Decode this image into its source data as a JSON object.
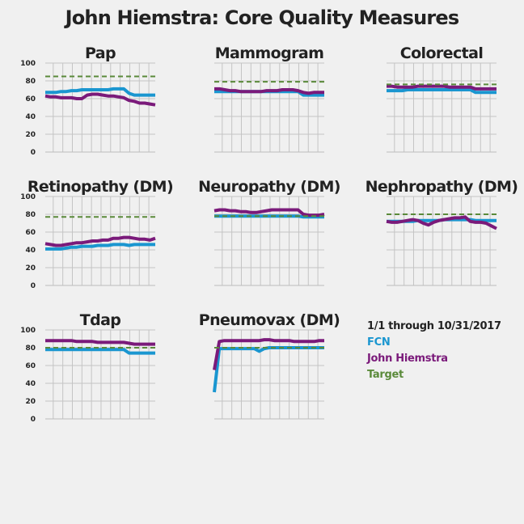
{
  "title": "John Hiemstra: Core Quality Measures",
  "legend": {
    "period": "1/1 through 10/31/2017",
    "entries": [
      {
        "name": "FCN",
        "color": "#1a96d0"
      },
      {
        "name": "John Hiemstra",
        "color": "#7a1a7a"
      },
      {
        "name": "Target",
        "color": "#5a8a3a"
      }
    ]
  },
  "chart_data": [
    {
      "type": "line",
      "title": "Pap",
      "ylim": [
        0,
        100
      ],
      "yticks": [
        "100",
        "80",
        "60",
        "40",
        "20",
        "0"
      ],
      "series": [
        {
          "name": "FCN",
          "values": [
            67,
            67,
            67,
            68,
            68,
            69,
            69,
            70,
            70,
            70,
            70,
            70,
            70,
            71,
            71,
            71,
            66,
            64,
            64,
            64,
            64,
            64
          ]
        },
        {
          "name": "John Hiemstra",
          "values": [
            63,
            62,
            62,
            61,
            61,
            61,
            60,
            60,
            64,
            65,
            65,
            64,
            63,
            63,
            62,
            61,
            58,
            57,
            55,
            55,
            54,
            53
          ]
        },
        {
          "name": "Target",
          "values": [
            85,
            85
          ]
        }
      ]
    },
    {
      "type": "line",
      "title": "Mammogram",
      "ylim": [
        0,
        100
      ],
      "yticks": [],
      "series": [
        {
          "name": "FCN",
          "values": [
            68,
            68,
            68,
            68,
            68,
            68,
            68,
            68,
            68,
            68,
            68,
            68,
            68,
            68,
            68,
            68,
            68,
            64,
            64,
            64,
            64,
            64
          ]
        },
        {
          "name": "John Hiemstra",
          "values": [
            71,
            71,
            70,
            69,
            69,
            68,
            68,
            68,
            68,
            68,
            69,
            69,
            69,
            70,
            70,
            70,
            69,
            67,
            66,
            67,
            67,
            67
          ]
        },
        {
          "name": "Target",
          "values": [
            79,
            79
          ]
        }
      ]
    },
    {
      "type": "line",
      "title": "Colorectal",
      "ylim": [
        0,
        100
      ],
      "yticks": [],
      "series": [
        {
          "name": "FCN",
          "values": [
            69,
            69,
            69,
            69,
            70,
            70,
            70,
            70,
            70,
            70,
            70,
            70,
            70,
            70,
            70,
            70,
            70,
            67,
            67,
            67,
            67,
            67
          ]
        },
        {
          "name": "John Hiemstra",
          "values": [
            74,
            74,
            73,
            73,
            73,
            73,
            74,
            74,
            74,
            74,
            74,
            74,
            73,
            73,
            73,
            73,
            73,
            71,
            71,
            71,
            71,
            71
          ]
        },
        {
          "name": "Target",
          "values": [
            76,
            76
          ]
        }
      ]
    },
    {
      "type": "line",
      "title": "Retinopathy (DM)",
      "ylim": [
        0,
        100
      ],
      "yticks": [
        "100",
        "80",
        "60",
        "40",
        "20",
        "0"
      ],
      "series": [
        {
          "name": "FCN",
          "values": [
            41,
            41,
            41,
            41,
            42,
            43,
            43,
            44,
            44,
            44,
            45,
            45,
            45,
            46,
            46,
            46,
            45,
            46,
            46,
            46,
            46,
            46
          ]
        },
        {
          "name": "John Hiemstra",
          "values": [
            47,
            46,
            45,
            45,
            46,
            47,
            48,
            48,
            49,
            50,
            50,
            51,
            51,
            53,
            53,
            54,
            54,
            53,
            52,
            52,
            51,
            53
          ]
        },
        {
          "name": "Target",
          "values": [
            77,
            77
          ]
        }
      ]
    },
    {
      "type": "line",
      "title": "Neuropathy (DM)",
      "ylim": [
        0,
        100
      ],
      "yticks": [],
      "series": [
        {
          "name": "FCN",
          "values": [
            78,
            78,
            78,
            78,
            78,
            78,
            78,
            78,
            78,
            78,
            78,
            78,
            78,
            78,
            78,
            78,
            78,
            77,
            77,
            77,
            77,
            77
          ]
        },
        {
          "name": "John Hiemstra",
          "values": [
            84,
            85,
            85,
            84,
            84,
            83,
            83,
            82,
            82,
            83,
            84,
            85,
            85,
            85,
            85,
            85,
            85,
            80,
            79,
            79,
            79,
            80
          ]
        },
        {
          "name": "Target",
          "values": [
            78,
            78
          ]
        }
      ]
    },
    {
      "type": "line",
      "title": "Nephropathy (DM)",
      "ylim": [
        0,
        100
      ],
      "yticks": [],
      "series": [
        {
          "name": "FCN",
          "values": [
            72,
            72,
            72,
            72,
            72,
            72,
            73,
            73,
            73,
            73,
            73,
            74,
            74,
            74,
            74,
            74,
            74,
            73,
            73,
            73,
            73,
            73
          ]
        },
        {
          "name": "John Hiemstra",
          "values": [
            72,
            71,
            71,
            72,
            73,
            74,
            73,
            70,
            68,
            71,
            73,
            74,
            75,
            76,
            76,
            77,
            72,
            71,
            71,
            70,
            67,
            64
          ]
        },
        {
          "name": "Target",
          "values": [
            80,
            80
          ]
        }
      ]
    },
    {
      "type": "line",
      "title": "Tdap",
      "ylim": [
        0,
        100
      ],
      "yticks": [
        "100",
        "80",
        "60",
        "40",
        "20",
        "0"
      ],
      "series": [
        {
          "name": "FCN",
          "values": [
            78,
            78,
            78,
            78,
            78,
            78,
            78,
            78,
            78,
            78,
            78,
            78,
            78,
            78,
            78,
            78,
            74,
            74,
            74,
            74,
            74,
            74
          ]
        },
        {
          "name": "John Hiemstra",
          "values": [
            88,
            88,
            88,
            88,
            88,
            88,
            87,
            87,
            87,
            87,
            86,
            86,
            86,
            86,
            86,
            86,
            85,
            84,
            84,
            84,
            84,
            84
          ]
        },
        {
          "name": "Target",
          "values": [
            80,
            80
          ]
        }
      ]
    },
    {
      "type": "line",
      "title": "Pneumovax (DM)",
      "ylim": [
        0,
        100
      ],
      "yticks": [],
      "series": [
        {
          "name": "FCN",
          "values": [
            30,
            79,
            79,
            79,
            79,
            79,
            79,
            79,
            79,
            76,
            79,
            80,
            80,
            80,
            80,
            80,
            80,
            80,
            80,
            80,
            80,
            80,
            80
          ]
        },
        {
          "name": "John Hiemstra",
          "values": [
            55,
            87,
            88,
            88,
            88,
            88,
            88,
            88,
            88,
            88,
            89,
            89,
            88,
            88,
            88,
            88,
            87,
            87,
            87,
            87,
            87,
            88,
            88
          ]
        },
        {
          "name": "Target",
          "values": [
            80,
            80
          ]
        }
      ]
    }
  ]
}
